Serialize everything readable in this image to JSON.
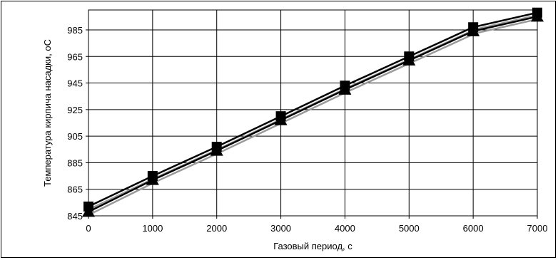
{
  "chart_data": {
    "type": "line",
    "title": "",
    "xlabel": "Газовый период, с",
    "ylabel": "Температура кирпича насадки, оС",
    "xlim": [
      0,
      7000
    ],
    "ylim": [
      845,
      1000
    ],
    "x_ticks": [
      "0",
      "1000",
      "2000",
      "3000",
      "4000",
      "5000",
      "6000",
      "7000"
    ],
    "y_ticks": [
      "845",
      "865",
      "885",
      "905",
      "925",
      "945",
      "965",
      "985"
    ],
    "grid": true,
    "legend": "none",
    "x": [
      0,
      1000,
      2000,
      3000,
      4000,
      5000,
      6000,
      7000
    ],
    "series": [
      {
        "marker": "square",
        "color": "#000000",
        "values": [
          852,
          875,
          897,
          920,
          943,
          965,
          987,
          998
        ]
      },
      {
        "marker": "triangle",
        "color": "#000000",
        "values": [
          848,
          872,
          894,
          917,
          940,
          962,
          984,
          995
        ]
      }
    ]
  }
}
